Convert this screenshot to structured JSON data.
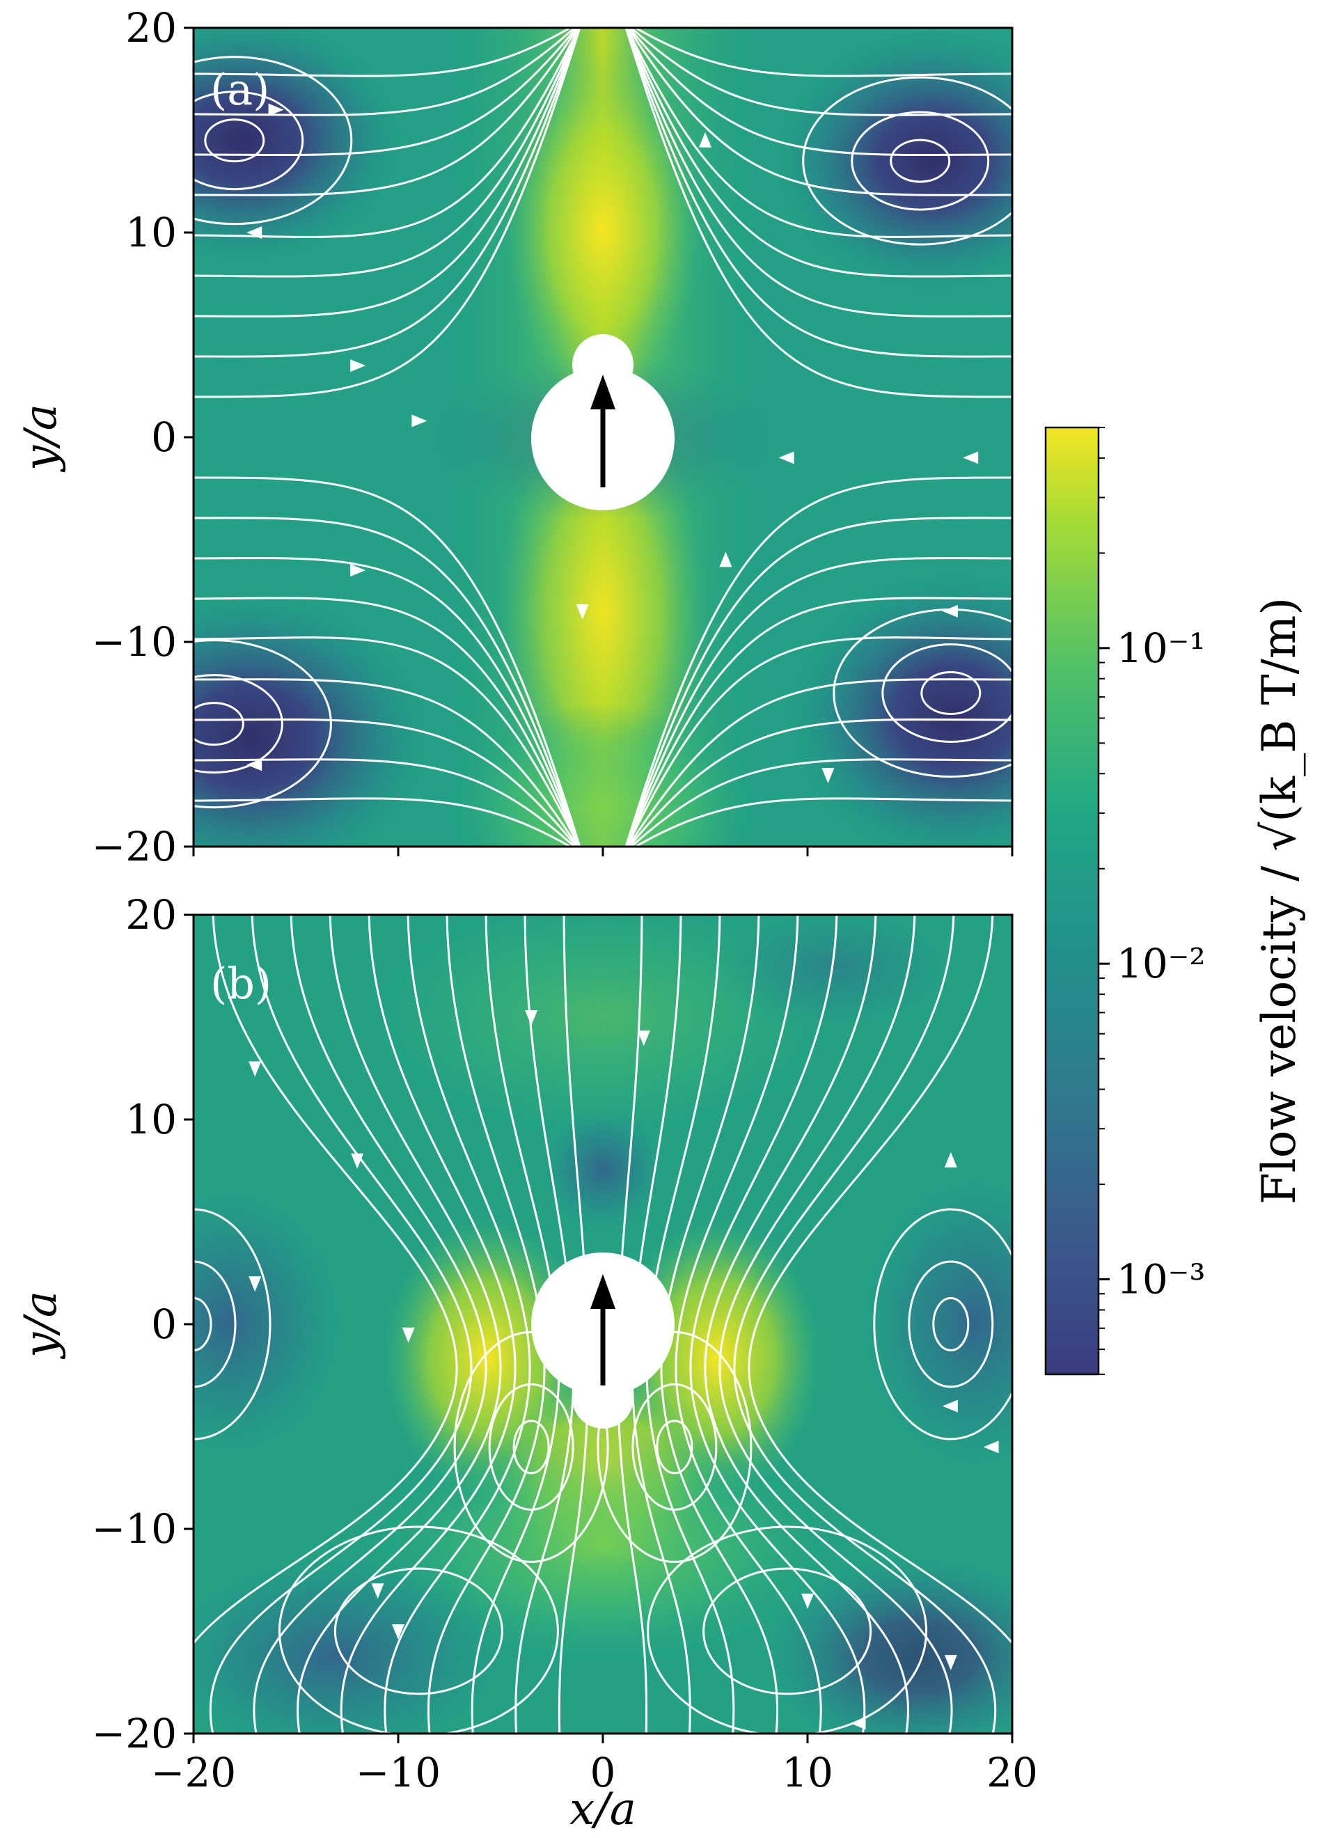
{
  "colors": {
    "field_low": "#3b3c80",
    "field_mid": "#21a486",
    "field_high": "#f5e524",
    "streamline": "#ffffff",
    "arrow": "#000000",
    "axis": "#000000"
  },
  "chart_data": [
    {
      "type": "heatmap",
      "panel_label": "(a)",
      "xlabel": "",
      "ylabel": "y/a",
      "xlim": [
        -20,
        20
      ],
      "ylim": [
        -20,
        20
      ],
      "xticks": [
        -20,
        -10,
        0,
        10,
        20
      ],
      "yticks": [
        -20,
        -10,
        0,
        10,
        20
      ],
      "x_tick_labels_visible": false,
      "field_description_values": {
        "swimmer_body_center": [
          0,
          0
        ],
        "swimmer_body_radius": 3.5,
        "swimmer_head_center": [
          0,
          3.6
        ],
        "swimmer_head_radius": 1.5,
        "swim_direction": "up"
      },
      "vortex_centers": [
        [
          -18,
          14.5
        ],
        [
          15.5,
          13.5
        ],
        [
          -19,
          -14
        ],
        [
          17,
          -12.5
        ]
      ],
      "sample_arrows": [
        {
          "x": 5,
          "y": 14.5,
          "dir": "up"
        },
        {
          "x": -16,
          "y": 16,
          "dir": "right"
        },
        {
          "x": -17,
          "y": 10,
          "dir": "left"
        },
        {
          "x": -12,
          "y": 3.5,
          "dir": "right"
        },
        {
          "x": -9,
          "y": 0.8,
          "dir": "right"
        },
        {
          "x": 9,
          "y": -1,
          "dir": "left"
        },
        {
          "x": 18,
          "y": -1,
          "dir": "left"
        },
        {
          "x": -12,
          "y": -6.5,
          "dir": "right"
        },
        {
          "x": -1,
          "y": -8.5,
          "dir": "down"
        },
        {
          "x": 6,
          "y": -6,
          "dir": "up"
        },
        {
          "x": 17,
          "y": -8.5,
          "dir": "left"
        },
        {
          "x": -17,
          "y": -16,
          "dir": "left"
        },
        {
          "x": 11,
          "y": -16.5,
          "dir": "down"
        }
      ]
    },
    {
      "type": "heatmap",
      "panel_label": "(b)",
      "xlabel": "x/a",
      "ylabel": "y/a",
      "xlim": [
        -20,
        20
      ],
      "ylim": [
        -20,
        20
      ],
      "xticks": [
        -20,
        -10,
        0,
        10,
        20
      ],
      "yticks": [
        -20,
        -10,
        0,
        10,
        20
      ],
      "x_tick_labels_visible": true,
      "field_description_values": {
        "swimmer_body_center": [
          0,
          0
        ],
        "swimmer_body_radius": 3.5,
        "swimmer_head_center": [
          0,
          -3.6
        ],
        "swimmer_head_radius": 1.5,
        "swim_direction": "up"
      },
      "vortex_centers": [
        [
          -20,
          0
        ],
        [
          17,
          0
        ],
        [
          -3.5,
          -6
        ],
        [
          3.5,
          -6
        ]
      ],
      "sample_arrows": [
        {
          "x": -3.5,
          "y": 15,
          "dir": "down"
        },
        {
          "x": 2,
          "y": 14,
          "dir": "down"
        },
        {
          "x": -17,
          "y": 12.5,
          "dir": "down"
        },
        {
          "x": -12,
          "y": 8,
          "dir": "down"
        },
        {
          "x": 17,
          "y": 8,
          "dir": "up"
        },
        {
          "x": -17,
          "y": 2,
          "dir": "down"
        },
        {
          "x": -9.5,
          "y": -0.5,
          "dir": "down"
        },
        {
          "x": 17,
          "y": -4,
          "dir": "left"
        },
        {
          "x": 19,
          "y": -6,
          "dir": "left"
        },
        {
          "x": -11,
          "y": -13,
          "dir": "down"
        },
        {
          "x": -10,
          "y": -15,
          "dir": "down"
        },
        {
          "x": 10,
          "y": -13.5,
          "dir": "down"
        },
        {
          "x": 17,
          "y": -16.5,
          "dir": "down"
        },
        {
          "x": 12.5,
          "y": -19.5,
          "dir": "left"
        }
      ]
    },
    {
      "type": "colorbar",
      "label": "Flow velocity / √(k_B T/m)",
      "scale": "log",
      "range": [
        0.0005,
        0.5
      ],
      "tick_labels": [
        "10⁻³",
        "10⁻²",
        "10⁻¹"
      ],
      "tick_values": [
        0.001,
        0.01,
        0.1
      ]
    }
  ]
}
